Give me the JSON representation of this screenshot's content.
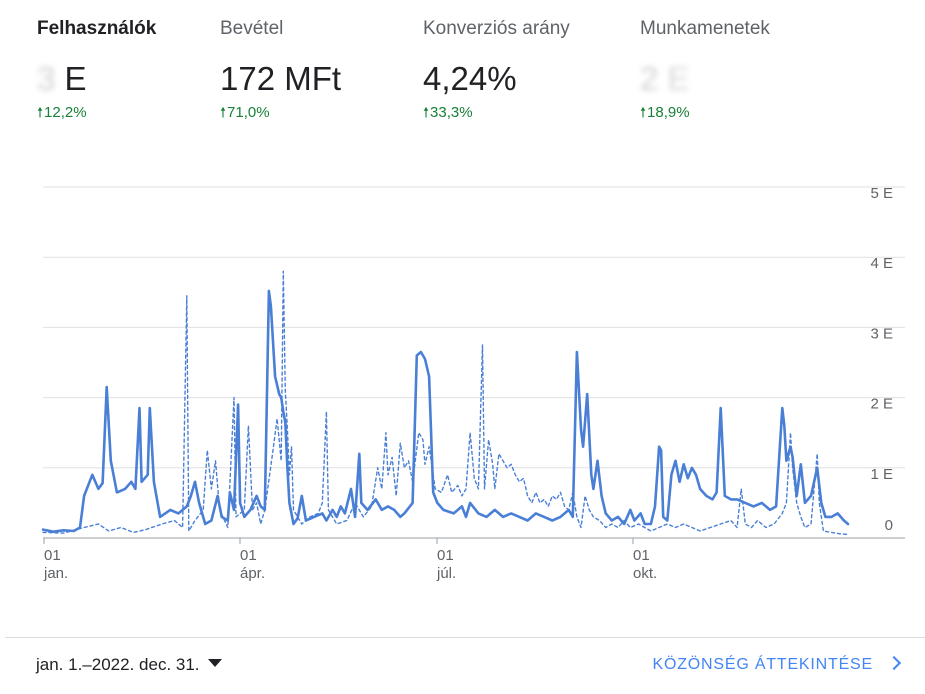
{
  "metrics": [
    {
      "label": "Felhasználók",
      "value_hidden": "3",
      "value_unit": "E",
      "change": "12,2%"
    },
    {
      "label": "Bevétel",
      "value": "172 MFt",
      "change": "71,0%"
    },
    {
      "label": "Konverziós arány",
      "value": "4,24%",
      "change": "33,3%"
    },
    {
      "label": "Munkamenetek",
      "value_hidden": "2",
      "value_unit": "E",
      "change": "18,9%"
    }
  ],
  "chart_data": {
    "type": "line",
    "y_ticks": [
      "0",
      "1 E",
      "2 E",
      "3 E",
      "4 E",
      "5 E"
    ],
    "y_range": [
      0,
      5000
    ],
    "x_ticks": [
      {
        "day": "01",
        "month": "jan."
      },
      {
        "day": "01",
        "month": "ápr."
      },
      {
        "day": "01",
        "month": "júl."
      },
      {
        "day": "01",
        "month": "okt."
      }
    ],
    "x_range_days": [
      0,
      365
    ],
    "grid": true,
    "series": [
      {
        "style": "solid",
        "color": "#4a7fd6",
        "points": [
          [
            0,
            120
          ],
          [
            5,
            90
          ],
          [
            10,
            110
          ],
          [
            15,
            100
          ],
          [
            18,
            150
          ],
          [
            20,
            600
          ],
          [
            24,
            900
          ],
          [
            27,
            700
          ],
          [
            29,
            780
          ],
          [
            31,
            2150
          ],
          [
            33,
            1100
          ],
          [
            36,
            650
          ],
          [
            40,
            700
          ],
          [
            43,
            800
          ],
          [
            45,
            700
          ],
          [
            47,
            1850
          ],
          [
            48,
            800
          ],
          [
            51,
            900
          ],
          [
            52,
            1850
          ],
          [
            54,
            800
          ],
          [
            57,
            300
          ],
          [
            62,
            400
          ],
          [
            66,
            350
          ],
          [
            70,
            450
          ],
          [
            72,
            600
          ],
          [
            74,
            800
          ],
          [
            76,
            500
          ],
          [
            79,
            200
          ],
          [
            82,
            250
          ],
          [
            85,
            600
          ],
          [
            87,
            300
          ],
          [
            90,
            250
          ],
          [
            91,
            650
          ],
          [
            93,
            400
          ],
          [
            95,
            1900
          ],
          [
            96,
            500
          ],
          [
            98,
            300
          ],
          [
            101,
            400
          ],
          [
            104,
            600
          ],
          [
            106,
            450
          ],
          [
            108,
            400
          ],
          [
            110,
            3520
          ],
          [
            111,
            3300
          ],
          [
            113,
            2300
          ],
          [
            115,
            2050
          ],
          [
            116,
            2000
          ],
          [
            117,
            1800
          ],
          [
            118,
            1650
          ],
          [
            119,
            1000
          ],
          [
            120,
            500
          ],
          [
            122,
            200
          ],
          [
            124,
            280
          ],
          [
            126,
            600
          ],
          [
            128,
            250
          ],
          [
            132,
            300
          ],
          [
            136,
            350
          ],
          [
            138,
            250
          ],
          [
            141,
            400
          ],
          [
            143,
            300
          ],
          [
            145,
            450
          ],
          [
            147,
            350
          ],
          [
            150,
            700
          ],
          [
            152,
            300
          ],
          [
            154,
            1200
          ],
          [
            155,
            500
          ],
          [
            158,
            400
          ],
          [
            162,
            550
          ],
          [
            165,
            400
          ],
          [
            168,
            450
          ],
          [
            171,
            400
          ],
          [
            174,
            300
          ],
          [
            176,
            350
          ],
          [
            180,
            500
          ],
          [
            182,
            2600
          ],
          [
            184,
            2650
          ],
          [
            186,
            2550
          ],
          [
            188,
            2300
          ],
          [
            190,
            650
          ],
          [
            192,
            500
          ],
          [
            195,
            400
          ],
          [
            200,
            350
          ],
          [
            204,
            450
          ],
          [
            206,
            300
          ],
          [
            208,
            500
          ],
          [
            212,
            350
          ],
          [
            216,
            300
          ],
          [
            220,
            400
          ],
          [
            224,
            300
          ],
          [
            228,
            350
          ],
          [
            232,
            300
          ],
          [
            236,
            250
          ],
          [
            240,
            350
          ],
          [
            244,
            300
          ],
          [
            248,
            250
          ],
          [
            252,
            300
          ],
          [
            256,
            400
          ],
          [
            258,
            300
          ],
          [
            260,
            2650
          ],
          [
            262,
            1550
          ],
          [
            263,
            1300
          ],
          [
            265,
            2050
          ],
          [
            267,
            900
          ],
          [
            268,
            700
          ],
          [
            270,
            1100
          ],
          [
            272,
            600
          ],
          [
            274,
            350
          ],
          [
            277,
            250
          ],
          [
            280,
            300
          ],
          [
            283,
            200
          ],
          [
            286,
            400
          ],
          [
            288,
            250
          ],
          [
            291,
            350
          ],
          [
            293,
            200
          ],
          [
            296,
            200
          ],
          [
            298,
            450
          ],
          [
            300,
            1300
          ],
          [
            301,
            1250
          ],
          [
            302,
            300
          ],
          [
            304,
            250
          ],
          [
            306,
            900
          ],
          [
            308,
            1100
          ],
          [
            310,
            800
          ],
          [
            312,
            1050
          ],
          [
            314,
            850
          ],
          [
            316,
            1000
          ],
          [
            318,
            900
          ],
          [
            320,
            700
          ],
          [
            323,
            600
          ],
          [
            326,
            550
          ],
          [
            328,
            650
          ],
          [
            330,
            1850
          ],
          [
            332,
            600
          ],
          [
            335,
            550
          ],
          [
            338,
            550
          ],
          [
            342,
            500
          ],
          [
            346,
            450
          ],
          [
            350,
            500
          ],
          [
            354,
            400
          ],
          [
            357,
            450
          ],
          [
            360,
            1850
          ],
          [
            361,
            1600
          ],
          [
            362,
            1100
          ],
          [
            364,
            1300
          ],
          [
            365,
            1150
          ],
          [
            367,
            600
          ],
          [
            369,
            1050
          ],
          [
            371,
            500
          ],
          [
            374,
            600
          ],
          [
            377,
            1000
          ],
          [
            379,
            500
          ],
          [
            381,
            300
          ],
          [
            384,
            300
          ],
          [
            387,
            350
          ],
          [
            390,
            250
          ],
          [
            392,
            200
          ]
        ]
      },
      {
        "style": "dashed",
        "color": "#4a7fd6",
        "points": [
          [
            0,
            80
          ],
          [
            10,
            70
          ],
          [
            20,
            150
          ],
          [
            27,
            200
          ],
          [
            32,
            100
          ],
          [
            38,
            150
          ],
          [
            44,
            80
          ],
          [
            50,
            120
          ],
          [
            58,
            200
          ],
          [
            64,
            250
          ],
          [
            68,
            150
          ],
          [
            70,
            3450
          ],
          [
            71,
            100
          ],
          [
            74,
            250
          ],
          [
            78,
            400
          ],
          [
            80,
            1250
          ],
          [
            82,
            700
          ],
          [
            84,
            1100
          ],
          [
            86,
            400
          ],
          [
            90,
            150
          ],
          [
            93,
            2000
          ],
          [
            94,
            300
          ],
          [
            98,
            400
          ],
          [
            100,
            1600
          ],
          [
            102,
            400
          ],
          [
            104,
            500
          ],
          [
            106,
            200
          ],
          [
            108,
            400
          ],
          [
            112,
            1250
          ],
          [
            114,
            1700
          ],
          [
            116,
            1100
          ],
          [
            117,
            3800
          ],
          [
            118,
            2100
          ],
          [
            119,
            1550
          ],
          [
            120,
            900
          ],
          [
            121,
            1300
          ],
          [
            122,
            400
          ],
          [
            126,
            200
          ],
          [
            130,
            300
          ],
          [
            134,
            350
          ],
          [
            136,
            500
          ],
          [
            138,
            1800
          ],
          [
            139,
            400
          ],
          [
            143,
            200
          ],
          [
            148,
            250
          ],
          [
            152,
            500
          ],
          [
            156,
            300
          ],
          [
            160,
            450
          ],
          [
            163,
            1000
          ],
          [
            165,
            700
          ],
          [
            167,
            1500
          ],
          [
            168,
            900
          ],
          [
            170,
            1150
          ],
          [
            172,
            600
          ],
          [
            174,
            1350
          ],
          [
            176,
            1000
          ],
          [
            178,
            1100
          ],
          [
            180,
            800
          ],
          [
            183,
            1500
          ],
          [
            185,
            1400
          ],
          [
            186,
            1050
          ],
          [
            188,
            1300
          ],
          [
            191,
            700
          ],
          [
            194,
            650
          ],
          [
            197,
            900
          ],
          [
            199,
            650
          ],
          [
            202,
            750
          ],
          [
            204,
            600
          ],
          [
            206,
            700
          ],
          [
            208,
            1500
          ],
          [
            210,
            850
          ],
          [
            212,
            700
          ],
          [
            214,
            2750
          ],
          [
            215,
            700
          ],
          [
            217,
            1400
          ],
          [
            219,
            1050
          ],
          [
            220,
            700
          ],
          [
            222,
            1200
          ],
          [
            224,
            1100
          ],
          [
            226,
            1000
          ],
          [
            228,
            1050
          ],
          [
            230,
            900
          ],
          [
            232,
            800
          ],
          [
            234,
            850
          ],
          [
            236,
            600
          ],
          [
            238,
            500
          ],
          [
            240,
            650
          ],
          [
            242,
            500
          ],
          [
            244,
            550
          ],
          [
            246,
            450
          ],
          [
            248,
            600
          ],
          [
            250,
            550
          ],
          [
            252,
            650
          ],
          [
            254,
            450
          ],
          [
            256,
            400
          ],
          [
            258,
            650
          ],
          [
            260,
            300
          ],
          [
            262,
            150
          ],
          [
            264,
            600
          ],
          [
            266,
            400
          ],
          [
            268,
            300
          ],
          [
            271,
            250
          ],
          [
            274,
            150
          ],
          [
            277,
            200
          ],
          [
            280,
            150
          ],
          [
            283,
            250
          ],
          [
            286,
            150
          ],
          [
            290,
            200
          ],
          [
            293,
            150
          ],
          [
            296,
            100
          ],
          [
            300,
            150
          ],
          [
            304,
            200
          ],
          [
            308,
            150
          ],
          [
            312,
            200
          ],
          [
            316,
            150
          ],
          [
            320,
            100
          ],
          [
            325,
            150
          ],
          [
            330,
            200
          ],
          [
            335,
            250
          ],
          [
            338,
            150
          ],
          [
            340,
            700
          ],
          [
            342,
            200
          ],
          [
            345,
            150
          ],
          [
            348,
            250
          ],
          [
            352,
            150
          ],
          [
            356,
            200
          ],
          [
            360,
            350
          ],
          [
            362,
            500
          ],
          [
            364,
            1500
          ],
          [
            365,
            1000
          ],
          [
            367,
            500
          ],
          [
            369,
            300
          ],
          [
            371,
            150
          ],
          [
            374,
            200
          ],
          [
            377,
            1200
          ],
          [
            378,
            500
          ],
          [
            380,
            100
          ],
          [
            384,
            80
          ],
          [
            388,
            60
          ],
          [
            392,
            50
          ]
        ]
      }
    ]
  },
  "footer": {
    "date_range": "jan. 1.–2022. dec. 31.",
    "link": "KÖZÖNSÉG ÁTTEKINTÉSE"
  },
  "colors": {
    "accent": "#4285f4",
    "positive": "#188038",
    "grid": "#e0e0e0",
    "line": "#4a7fd6"
  }
}
